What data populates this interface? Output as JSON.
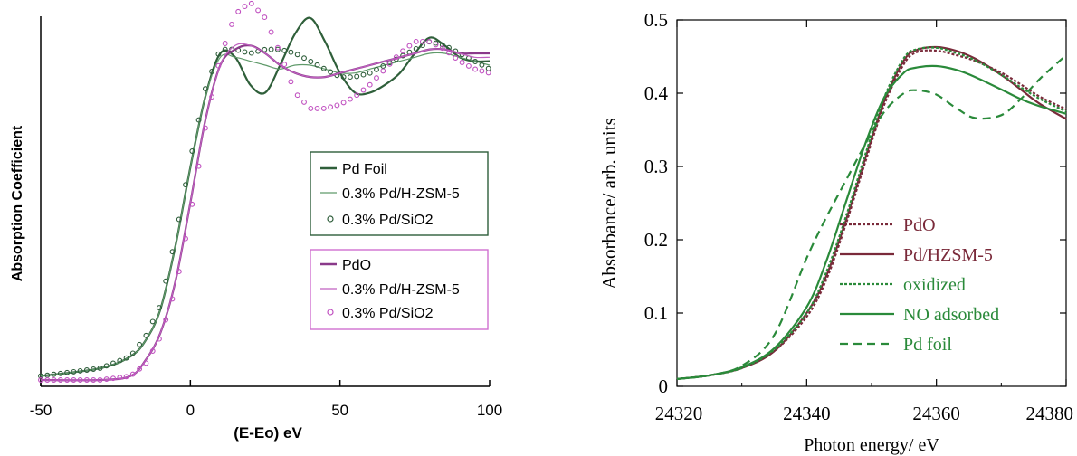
{
  "chart_data": [
    {
      "type": "line",
      "title": "",
      "xlabel": "(E-Eo) eV",
      "ylabel": "Absorption Coefficient",
      "xlim": [
        -50,
        100
      ],
      "xticks": [
        "-50",
        "0",
        "50",
        "100"
      ],
      "y_ticks_shown": false,
      "grid": false,
      "legend": [
        {
          "position": "right, middle",
          "border_color": "#2e5d3a",
          "entries": [
            {
              "name": "Pd Foil",
              "marker": "line"
            },
            {
              "name": "0.3% Pd/H-ZSM-5",
              "marker": "thin-line"
            },
            {
              "name": "0.3% Pd/SiO2",
              "marker": "circle"
            }
          ]
        },
        {
          "position": "right, lower middle",
          "border_color": "#d070d0",
          "entries": [
            {
              "name": "PdO",
              "marker": "line"
            },
            {
              "name": "0.3% Pd/H-ZSM-5",
              "marker": "thin-line"
            },
            {
              "name": "0.3% Pd/SiO2",
              "marker": "circle"
            }
          ]
        }
      ],
      "series": [
        {
          "name": "Pd Foil",
          "color": "#2f5f3a",
          "style": "line",
          "x": [
            -50,
            -30,
            -20,
            -15,
            -10,
            -5,
            0,
            5,
            10,
            15,
            20,
            25,
            30,
            35,
            40,
            45,
            50,
            55,
            60,
            65,
            70,
            75,
            80,
            85,
            90,
            95,
            100
          ],
          "y": [
            0.01,
            0.03,
            0.06,
            0.1,
            0.18,
            0.34,
            0.54,
            0.72,
            0.83,
            0.82,
            0.75,
            0.73,
            0.8,
            0.88,
            0.92,
            0.86,
            0.78,
            0.73,
            0.73,
            0.75,
            0.78,
            0.83,
            0.87,
            0.85,
            0.82,
            0.81,
            0.81
          ]
        },
        {
          "name": "0.3% Pd/H-ZSM-5",
          "color": "#5f9a6a",
          "style": "thin-line",
          "x": [
            -50,
            -30,
            -20,
            -15,
            -10,
            -5,
            0,
            5,
            10,
            15,
            20,
            25,
            30,
            35,
            40,
            45,
            50,
            55,
            60,
            65,
            70,
            75,
            80,
            85,
            90,
            95,
            100
          ],
          "y": [
            0.01,
            0.03,
            0.06,
            0.1,
            0.18,
            0.34,
            0.54,
            0.72,
            0.82,
            0.82,
            0.81,
            0.8,
            0.79,
            0.8,
            0.8,
            0.79,
            0.78,
            0.78,
            0.79,
            0.8,
            0.81,
            0.82,
            0.83,
            0.83,
            0.82,
            0.81,
            0.8
          ]
        },
        {
          "name": "0.3% Pd/SiO2",
          "color": "#2e5d3a",
          "style": "circle",
          "x": [
            -50,
            -30,
            -20,
            -15,
            -10,
            -5,
            0,
            5,
            10,
            15,
            20,
            25,
            30,
            35,
            40,
            45,
            50,
            55,
            60,
            65,
            70,
            75,
            80,
            85,
            90,
            95,
            100
          ],
          "y": [
            0.01,
            0.03,
            0.06,
            0.11,
            0.19,
            0.36,
            0.56,
            0.74,
            0.84,
            0.84,
            0.83,
            0.84,
            0.84,
            0.83,
            0.81,
            0.79,
            0.77,
            0.77,
            0.78,
            0.8,
            0.82,
            0.84,
            0.86,
            0.85,
            0.83,
            0.81,
            0.79
          ]
        },
        {
          "name": "PdO",
          "color": "#8a3a8a",
          "style": "line",
          "x": [
            -50,
            -30,
            -20,
            -15,
            -10,
            -5,
            0,
            5,
            10,
            15,
            20,
            25,
            30,
            35,
            40,
            45,
            50,
            55,
            60,
            65,
            70,
            75,
            80,
            85,
            90,
            95,
            100
          ],
          "y": [
            0.0,
            0.0,
            0.01,
            0.05,
            0.12,
            0.25,
            0.45,
            0.66,
            0.8,
            0.84,
            0.85,
            0.83,
            0.8,
            0.78,
            0.77,
            0.77,
            0.78,
            0.79,
            0.8,
            0.81,
            0.82,
            0.83,
            0.84,
            0.84,
            0.83,
            0.83,
            0.83
          ]
        },
        {
          "name": "0.3% Pd/H-ZSM-5",
          "color": "#c060c0",
          "style": "thin-line",
          "x": [
            -50,
            -30,
            -20,
            -15,
            -10,
            -5,
            0,
            5,
            10,
            15,
            20,
            25,
            30,
            35,
            40,
            45,
            50,
            55,
            60,
            65,
            70,
            75,
            80,
            85,
            90,
            95,
            100
          ],
          "y": [
            0.0,
            0.0,
            0.01,
            0.05,
            0.12,
            0.25,
            0.45,
            0.66,
            0.8,
            0.85,
            0.85,
            0.83,
            0.8,
            0.78,
            0.77,
            0.77,
            0.78,
            0.79,
            0.8,
            0.81,
            0.82,
            0.83,
            0.84,
            0.84,
            0.83,
            0.82,
            0.82
          ]
        },
        {
          "name": "0.3% Pd/SiO2",
          "color": "#c050c0",
          "style": "circle",
          "x": [
            -50,
            -30,
            -20,
            -15,
            -10,
            -5,
            0,
            5,
            10,
            15,
            20,
            25,
            30,
            35,
            40,
            45,
            50,
            55,
            60,
            65,
            70,
            75,
            80,
            85,
            90,
            95,
            100
          ],
          "y": [
            0.0,
            0.0,
            0.01,
            0.04,
            0.11,
            0.23,
            0.42,
            0.64,
            0.82,
            0.93,
            0.96,
            0.92,
            0.83,
            0.73,
            0.69,
            0.69,
            0.7,
            0.72,
            0.75,
            0.79,
            0.83,
            0.86,
            0.86,
            0.84,
            0.81,
            0.79,
            0.78
          ]
        }
      ]
    },
    {
      "type": "line",
      "title": "",
      "xlabel": "Photon energy/ eV",
      "ylabel": "Absorbance/ arb. units",
      "xlim": [
        24320,
        24380
      ],
      "ylim": [
        0,
        0.5
      ],
      "xticks": [
        "24320",
        "24340",
        "24360",
        "24380"
      ],
      "yticks": [
        "0",
        "0.1",
        "0.2",
        "0.3",
        "0.4",
        "0.5"
      ],
      "grid": false,
      "legend": {
        "position": "bottom-center, inside",
        "entries": [
          {
            "name": "PdO",
            "color": "#7a2a3a",
            "style": "dotted"
          },
          {
            "name": "Pd/HZSM-5",
            "color": "#7a2a3a",
            "style": "solid"
          },
          {
            "name": "oxidized",
            "color": "#2a8a3a",
            "style": "dotted"
          },
          {
            "name": "NO adsorbed",
            "color": "#2a8a3a",
            "style": "solid"
          },
          {
            "name": "Pd foil",
            "color": "#2a8a3a",
            "style": "dashed"
          }
        ]
      },
      "series": [
        {
          "name": "PdO",
          "color": "#7a2a3a",
          "style": "dotted",
          "x": [
            24320,
            24325,
            24330,
            24335,
            24340,
            24343,
            24346,
            24349,
            24352,
            24355,
            24357,
            24360,
            24363,
            24366,
            24370,
            24373,
            24376,
            24380
          ],
          "y": [
            0.01,
            0.015,
            0.025,
            0.048,
            0.095,
            0.145,
            0.22,
            0.305,
            0.385,
            0.44,
            0.456,
            0.458,
            0.452,
            0.444,
            0.428,
            0.412,
            0.395,
            0.378
          ]
        },
        {
          "name": "Pd/HZSM-5",
          "color": "#7a2a3a",
          "style": "solid",
          "x": [
            24320,
            24325,
            24330,
            24335,
            24340,
            24343,
            24346,
            24349,
            24352,
            24355,
            24357,
            24360,
            24363,
            24366,
            24370,
            24373,
            24376,
            24380
          ],
          "y": [
            0.01,
            0.015,
            0.025,
            0.048,
            0.1,
            0.15,
            0.225,
            0.31,
            0.39,
            0.445,
            0.459,
            0.463,
            0.458,
            0.447,
            0.425,
            0.405,
            0.385,
            0.365
          ]
        },
        {
          "name": "oxidized",
          "color": "#2a8a3a",
          "style": "dotted",
          "x": [
            24320,
            24325,
            24330,
            24335,
            24340,
            24343,
            24346,
            24349,
            24352,
            24355,
            24357,
            24360,
            24363,
            24366,
            24370,
            24373,
            24376,
            24380
          ],
          "y": [
            0.01,
            0.015,
            0.025,
            0.05,
            0.1,
            0.155,
            0.23,
            0.315,
            0.395,
            0.448,
            0.46,
            0.462,
            0.455,
            0.445,
            0.425,
            0.408,
            0.392,
            0.375
          ]
        },
        {
          "name": "NO adsorbed",
          "color": "#2a8a3a",
          "style": "solid",
          "x": [
            24320,
            24325,
            24330,
            24335,
            24340,
            24343,
            24346,
            24349,
            24352,
            24355,
            24357,
            24360,
            24363,
            24366,
            24370,
            24373,
            24376,
            24380
          ],
          "y": [
            0.01,
            0.015,
            0.026,
            0.052,
            0.108,
            0.17,
            0.25,
            0.33,
            0.395,
            0.428,
            0.435,
            0.437,
            0.432,
            0.422,
            0.405,
            0.392,
            0.382,
            0.372
          ]
        },
        {
          "name": "Pd foil",
          "color": "#2a8a3a",
          "style": "dashed",
          "x": [
            24320,
            24325,
            24330,
            24335,
            24340,
            24343,
            24346,
            24349,
            24352,
            24355,
            24357,
            24360,
            24363,
            24366,
            24370,
            24373,
            24376,
            24380
          ],
          "y": [
            0.01,
            0.015,
            0.028,
            0.07,
            0.175,
            0.23,
            0.28,
            0.33,
            0.375,
            0.4,
            0.404,
            0.398,
            0.38,
            0.366,
            0.37,
            0.392,
            0.42,
            0.452
          ]
        }
      ]
    }
  ]
}
